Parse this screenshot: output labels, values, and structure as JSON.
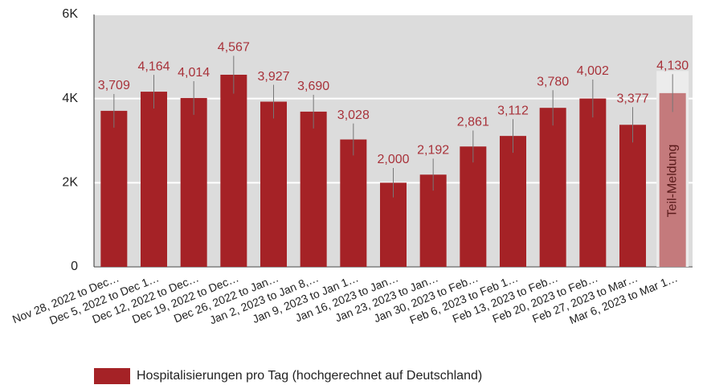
{
  "chart_data": {
    "type": "bar",
    "categories": [
      "Nov 28, 2022 to Dec…",
      "Dec 5, 2022 to Dec 1…",
      "Dec 12, 2022 to Dec…",
      "Dec 19, 2022 to Dec…",
      "Dec 26, 2022 to Jan…",
      "Jan 2, 2023 to Jan 8,…",
      "Jan 9, 2023 to Jan 1…",
      "Jan 16, 2023 to Jan…",
      "Jan 23, 2023 to Jan…",
      "Jan 30, 2023 to Feb…",
      "Feb 6, 2023 to Feb 1…",
      "Feb 13, 2023 to Feb…",
      "Feb 20, 2023 to Feb…",
      "Feb 27, 2023 to Mar…",
      "Mar 6, 2023 to Mar 1…"
    ],
    "series": [
      {
        "name": "Hospitalisierungen pro Tag (hochgerechnet auf Deutschland)",
        "color": "#a52226",
        "values": [
          3709,
          4164,
          4014,
          4567,
          3927,
          3690,
          3028,
          2000,
          2192,
          2861,
          3112,
          3780,
          4002,
          3377,
          4130
        ],
        "value_labels": [
          "3,709",
          "4,164",
          "4,014",
          "4,567",
          "3,927",
          "3,690",
          "3,028",
          "2,000",
          "2,192",
          "2,861",
          "3,112",
          "3,780",
          "4,002",
          "3,377",
          "4,130"
        ],
        "errors": [
          400,
          400,
          400,
          450,
          400,
          400,
          380,
          350,
          380,
          380,
          400,
          420,
          450,
          420,
          450
        ]
      }
    ],
    "partial_color": "#c47a7c",
    "annotation": "Teil-Meldung",
    "ylim": [
      0,
      6000
    ],
    "yticks": [
      0,
      {
        "value": 2000,
        "label": "2K"
      },
      {
        "value": 4000,
        "label": "4K"
      },
      {
        "value": 6000,
        "label": "6K"
      }
    ],
    "grid": true
  }
}
